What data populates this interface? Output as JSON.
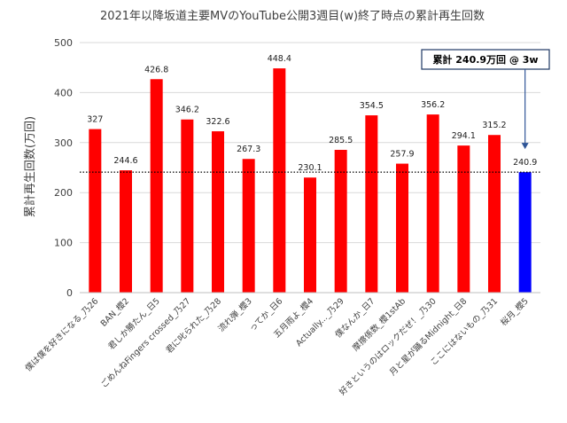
{
  "chart_data": {
    "type": "bar",
    "title": "2021年以降坂道主要MVのYouTube公開3週目(w)終了時点の累計再生回数",
    "ylabel": "累計再生回数(万回)",
    "xlabel": "",
    "ylim": [
      0,
      500
    ],
    "yticks": [
      0,
      100,
      200,
      300,
      400,
      500
    ],
    "grid": true,
    "categories": [
      "僕は僕を好きになる_乃26",
      "BAN_櫻2",
      "君しか勝たん_日5",
      "ごめんねFingers crossed_乃27",
      "君に叱られた_乃28",
      "流れ弾_櫻3",
      "ってか_日6",
      "五月雨よ_櫻4",
      "Actually..._乃29",
      "僕なんか_日7",
      "摩擦係数_櫻1stAb",
      "好きというのはロックだぜ！_乃30",
      "月と星が踊るMidnight_日8",
      "ここにはないもの_乃31",
      "桜月_櫻5"
    ],
    "values": [
      327,
      244.6,
      426.8,
      346.2,
      322.6,
      267.3,
      448.4,
      230.1,
      285.5,
      354.5,
      257.9,
      356.2,
      294.1,
      315.2,
      240.9
    ],
    "value_labels": [
      "327",
      "244.6",
      "426.8",
      "346.2",
      "322.6",
      "267.3",
      "448.4",
      "230.1",
      "285.5",
      "354.5",
      "257.9",
      "356.2",
      "294.1",
      "315.2",
      "240.9"
    ],
    "highlight_index": 14,
    "colors": {
      "bar": "#ff0000",
      "highlight": "#0000ff",
      "reference_line": "#000000"
    },
    "reference_line": {
      "value": 240.9,
      "style": "dotted"
    },
    "annotation": {
      "text": "累計 240.9万回 @ 3w",
      "target_index": 14
    }
  }
}
